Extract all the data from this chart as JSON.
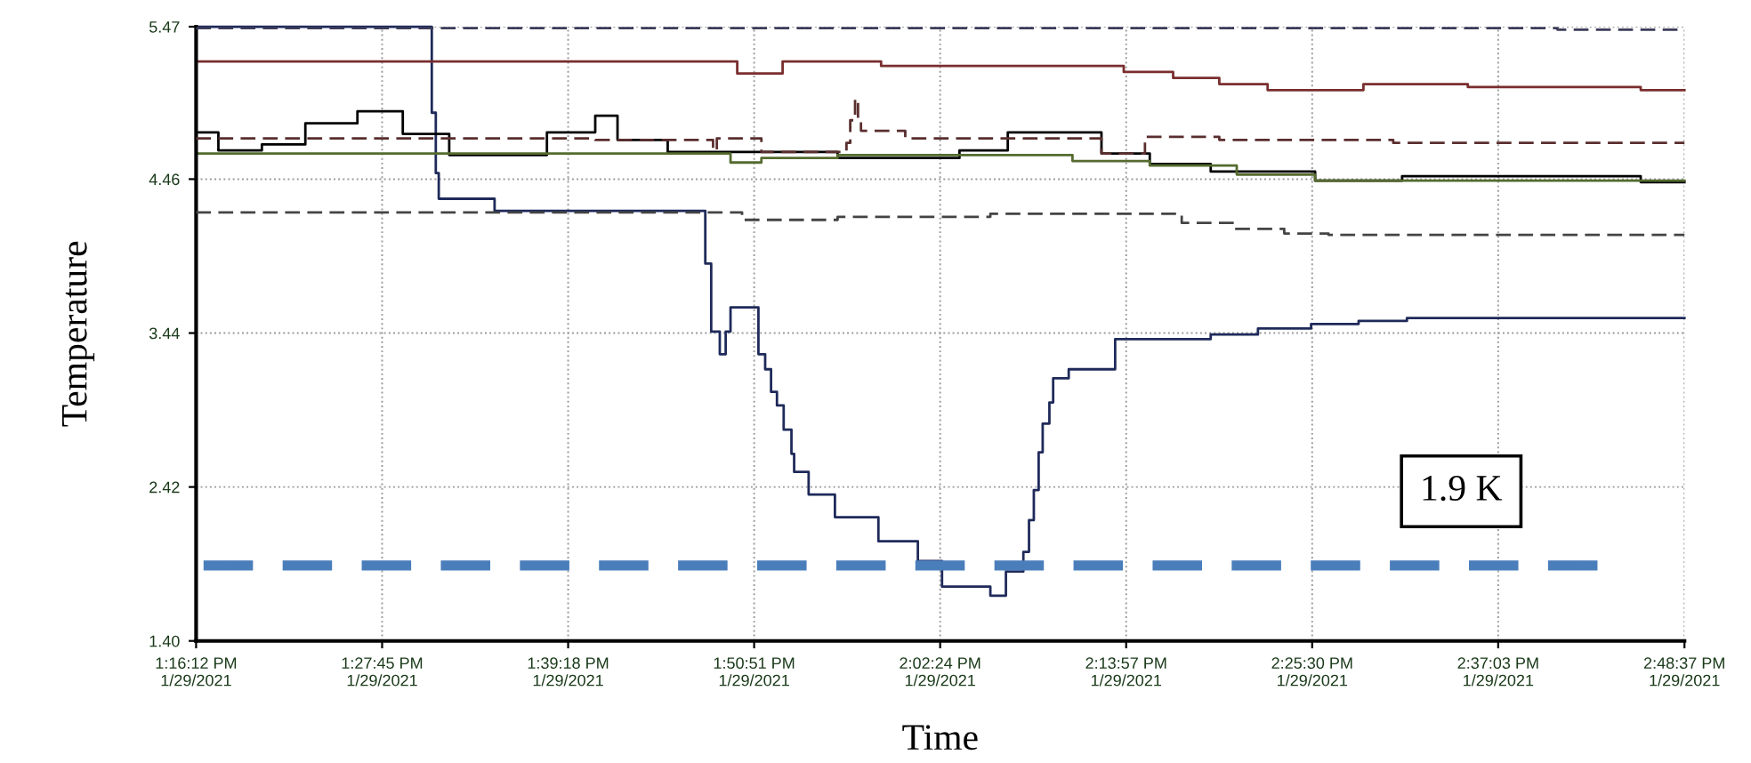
{
  "chart_data": {
    "type": "step",
    "xlabel": "Time",
    "ylabel": "Temperature",
    "grid": true,
    "legend": false,
    "xlim": [
      "2021-01-29T13:16:12",
      "2021-01-29T14:48:37"
    ],
    "xticks": [
      {
        "value": "2021-01-29T13:16:12",
        "label": "1:16:12 PM\n1/29/2021"
      },
      {
        "value": "2021-01-29T13:27:45",
        "label": "1:27:45 PM\n1/29/2021"
      },
      {
        "value": "2021-01-29T13:39:18",
        "label": "1:39:18 PM\n1/29/2021"
      },
      {
        "value": "2021-01-29T13:50:51",
        "label": "1:50:51 PM\n1/29/2021"
      },
      {
        "value": "2021-01-29T14:02:24",
        "label": "2:02:24 PM\n1/29/2021"
      },
      {
        "value": "2021-01-29T14:13:57",
        "label": "2:13:57 PM\n1/29/2021"
      },
      {
        "value": "2021-01-29T14:25:30",
        "label": "2:25:30 PM\n1/29/2021"
      },
      {
        "value": "2021-01-29T14:37:03",
        "label": "2:37:03 PM\n1/29/2021"
      },
      {
        "value": "2021-01-29T14:48:37",
        "label": "2:48:37 PM\n1/29/2021"
      }
    ],
    "ylim": [
      1.4,
      5.47
    ],
    "yticks": [
      {
        "value": 1.4,
        "label": "1.40"
      },
      2.42,
      3.44,
      4.46,
      5.47
    ],
    "series": [
      {
        "color": "#1f2a5a",
        "line_style": "solid",
        "x": [
          "2021-01-29T13:16:12",
          "2021-01-29T13:30:43",
          "2021-01-29T13:30:50",
          "2021-01-29T13:31:05",
          "2021-01-29T13:31:16",
          "2021-01-29T13:34:44",
          "2021-01-29T13:47:28",
          "2021-01-29T13:47:49",
          "2021-01-29T13:48:11",
          "2021-01-29T13:48:43",
          "2021-01-29T13:49:05",
          "2021-01-29T13:49:23",
          "2021-01-29T13:50:53",
          "2021-01-29T13:51:07",
          "2021-01-29T13:51:32",
          "2021-01-29T13:51:54",
          "2021-01-29T13:52:16",
          "2021-01-29T13:52:41",
          "2021-01-29T13:53:10",
          "2021-01-29T13:53:20",
          "2021-01-29T13:54:14",
          "2021-01-29T13:55:52",
          "2021-01-29T13:58:34",
          "2021-01-29T14:01:01",
          "2021-01-29T14:02:31",
          "2021-01-29T14:05:31",
          "2021-01-29T14:06:29",
          "2021-01-29T14:07:34",
          "2021-01-29T14:07:55",
          "2021-01-29T14:08:13",
          "2021-01-29T14:08:31",
          "2021-01-29T14:08:46",
          "2021-01-29T14:09:11",
          "2021-01-29T14:09:25",
          "2021-01-29T14:10:23",
          "2021-01-29T14:13:16",
          "2021-01-29T14:19:12",
          "2021-01-29T14:22:08",
          "2021-01-29T14:25:26",
          "2021-01-29T14:28:23",
          "2021-01-29T14:31:23",
          "2021-01-29T14:48:37"
        ],
        "values": [
          5.47,
          5.47,
          4.9,
          4.5,
          4.33,
          4.25,
          4.25,
          3.9,
          3.45,
          3.3,
          3.45,
          3.61,
          3.61,
          3.3,
          3.2,
          3.05,
          2.96,
          2.8,
          2.64,
          2.52,
          2.37,
          2.22,
          2.06,
          1.93,
          1.76,
          1.7,
          1.86,
          1.99,
          2.2,
          2.4,
          2.65,
          2.84,
          2.98,
          3.14,
          3.2,
          3.4,
          3.43,
          3.47,
          3.5,
          3.52,
          3.54,
          3.54
        ]
      },
      {
        "color": "#7a2e2e",
        "line_style": "solid",
        "x": [
          "2021-01-29T13:16:12",
          "2021-01-29T13:49:48",
          "2021-01-29T13:52:37",
          "2021-01-29T13:58:44",
          "2021-01-29T14:13:48",
          "2021-01-29T14:16:52",
          "2021-01-29T14:19:44",
          "2021-01-29T14:22:44",
          "2021-01-29T14:28:41",
          "2021-01-29T14:35:10",
          "2021-01-29T14:45:54",
          "2021-01-29T14:48:37"
        ],
        "values": [
          5.24,
          5.16,
          5.24,
          5.21,
          5.17,
          5.13,
          5.09,
          5.05,
          5.09,
          5.07,
          5.05,
          5.05
        ]
      },
      {
        "color": "#3c3c5a",
        "line_style": "dashed",
        "x": [
          "2021-01-29T13:16:12",
          "2021-01-29T13:45:00",
          "2021-01-29T14:10:00",
          "2021-01-29T14:30:00",
          "2021-01-29T14:40:44",
          "2021-01-29T14:48:37"
        ],
        "values": [
          5.46,
          5.46,
          5.46,
          5.46,
          5.45,
          5.45
        ]
      },
      {
        "color": "#5a2e2e",
        "line_style": "dashed",
        "x": [
          "2021-01-29T13:16:12",
          "2021-01-29T13:40:59",
          "2021-01-29T13:48:18",
          "2021-01-29T13:48:32",
          "2021-01-29T13:51:18",
          "2021-01-29T13:56:35",
          "2021-01-29T13:56:49",
          "2021-01-29T13:57:07",
          "2021-01-29T13:57:18",
          "2021-01-29T13:57:29",
          "2021-01-29T14:00:14",
          "2021-01-29T14:12:25",
          "2021-01-29T14:15:07",
          "2021-01-29T14:19:44",
          "2021-01-29T14:30:32",
          "2021-01-29T14:48:37"
        ],
        "values": [
          4.73,
          4.72,
          4.65,
          4.73,
          4.64,
          4.7,
          4.85,
          4.99,
          4.85,
          4.78,
          4.73,
          4.63,
          4.74,
          4.72,
          4.7,
          4.7
        ]
      },
      {
        "color": "#444444",
        "line_style": "dashed",
        "x": [
          "2021-01-29T13:16:12",
          "2021-01-29T13:50:06",
          "2021-01-29T13:56:02",
          "2021-01-29T14:05:31",
          "2021-01-29T14:17:24",
          "2021-01-29T14:20:38",
          "2021-01-29T14:23:46",
          "2021-01-29T14:26:31",
          "2021-01-29T14:48:37"
        ],
        "values": [
          4.24,
          4.19,
          4.21,
          4.23,
          4.17,
          4.13,
          4.1,
          4.09,
          4.09
        ]
      },
      {
        "color": "#000000",
        "line_style": "solid",
        "x": [
          "2021-01-29T13:16:12",
          "2021-01-29T13:17:35",
          "2021-01-29T13:20:17",
          "2021-01-29T13:22:59",
          "2021-01-29T13:26:13",
          "2021-01-29T13:29:02",
          "2021-01-29T13:31:55",
          "2021-01-29T13:37:59",
          "2021-01-29T13:40:59",
          "2021-01-29T13:42:22",
          "2021-01-29T13:45:29",
          "2021-01-29T13:56:02",
          "2021-01-29T14:03:36",
          "2021-01-29T14:06:36",
          "2021-01-29T14:12:25",
          "2021-01-29T14:15:25",
          "2021-01-29T14:19:12",
          "2021-01-29T14:25:41",
          "2021-01-29T14:31:05",
          "2021-01-29T14:45:54",
          "2021-01-29T14:48:37"
        ],
        "values": [
          4.77,
          4.65,
          4.69,
          4.83,
          4.91,
          4.76,
          4.62,
          4.77,
          4.88,
          4.72,
          4.64,
          4.6,
          4.65,
          4.77,
          4.63,
          4.56,
          4.51,
          4.45,
          4.48,
          4.44,
          4.44
        ]
      },
      {
        "color": "#556b2f",
        "line_style": "solid",
        "x": [
          "2021-01-29T13:16:12",
          "2021-01-29T13:49:23",
          "2021-01-29T13:51:18",
          "2021-01-29T13:56:02",
          "2021-01-29T14:10:37",
          "2021-01-29T14:15:25",
          "2021-01-29T14:20:49",
          "2021-01-29T14:25:41",
          "2021-01-29T14:48:37"
        ],
        "values": [
          4.63,
          4.57,
          4.6,
          4.62,
          4.58,
          4.55,
          4.49,
          4.45,
          4.45
        ]
      }
    ],
    "ref_lines": [
      {
        "axis": "y",
        "value": 1.9,
        "label": "1.9 K",
        "color": "#4a7ebb",
        "line_style": "dashed"
      }
    ]
  }
}
